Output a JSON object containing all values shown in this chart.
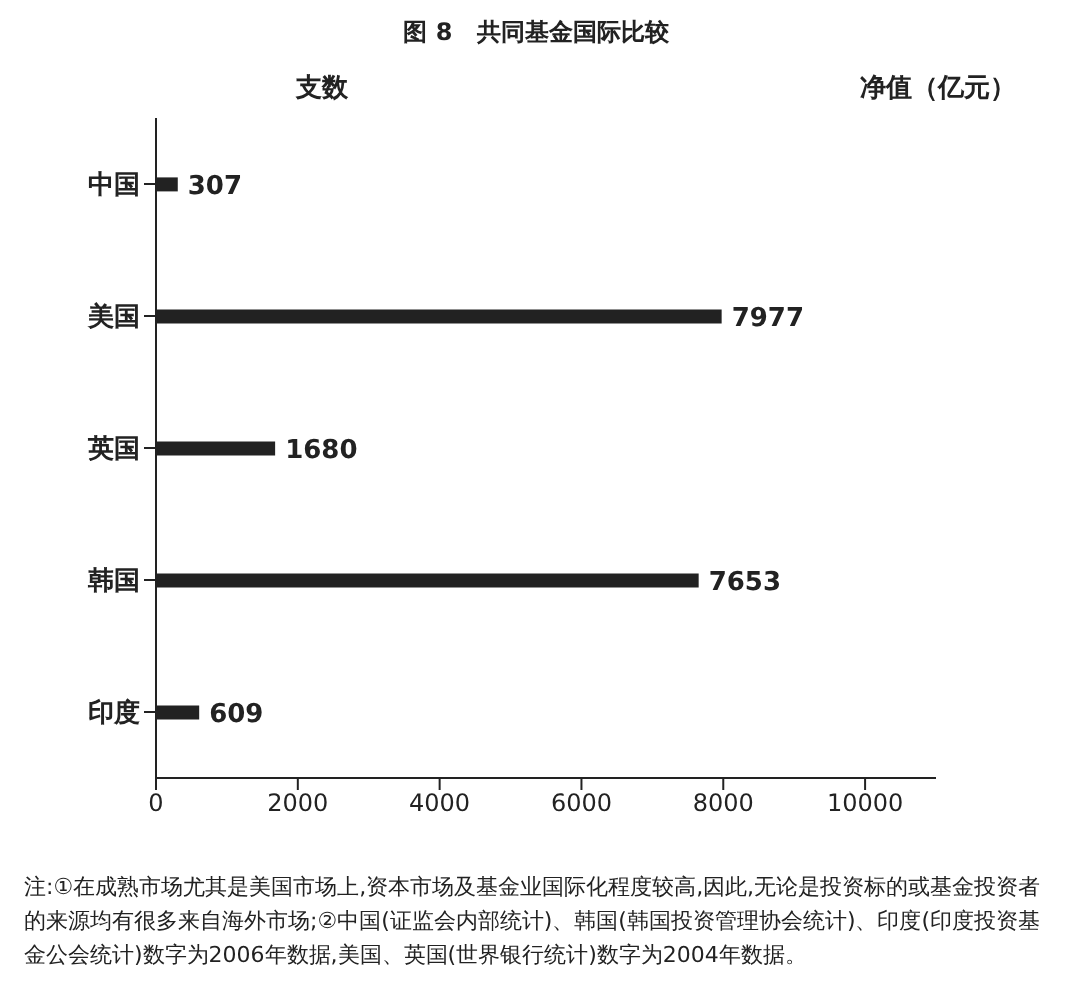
{
  "chart_data": {
    "type": "bar",
    "orientation": "horizontal",
    "title": "图 8　共同基金国际比较",
    "xlabel": "支数",
    "categories": [
      "中国",
      "美国",
      "英国",
      "韩国",
      "印度"
    ],
    "values": [
      307,
      7977,
      1680,
      7653,
      609
    ],
    "color": "#222222",
    "xlim": [
      0,
      11000
    ],
    "xticks": [
      0,
      2000,
      4000,
      6000,
      8000,
      10000
    ],
    "data_labels": true,
    "annotations": [
      "净值（亿元）",
      "注:①在成熟市场尤其是美国市场上,资本市场及基金业国际化程度较高,因此,无论是投资标的或基金投资者的来源均有很多来自海外市场;②中国(证监会内部统计)、韩国(韩国投资管理协会统计)、印度(印度投资基金公会统计)数字为2006年数据,美国、英国(世界银行统计)数字为2004年数据。"
    ]
  }
}
